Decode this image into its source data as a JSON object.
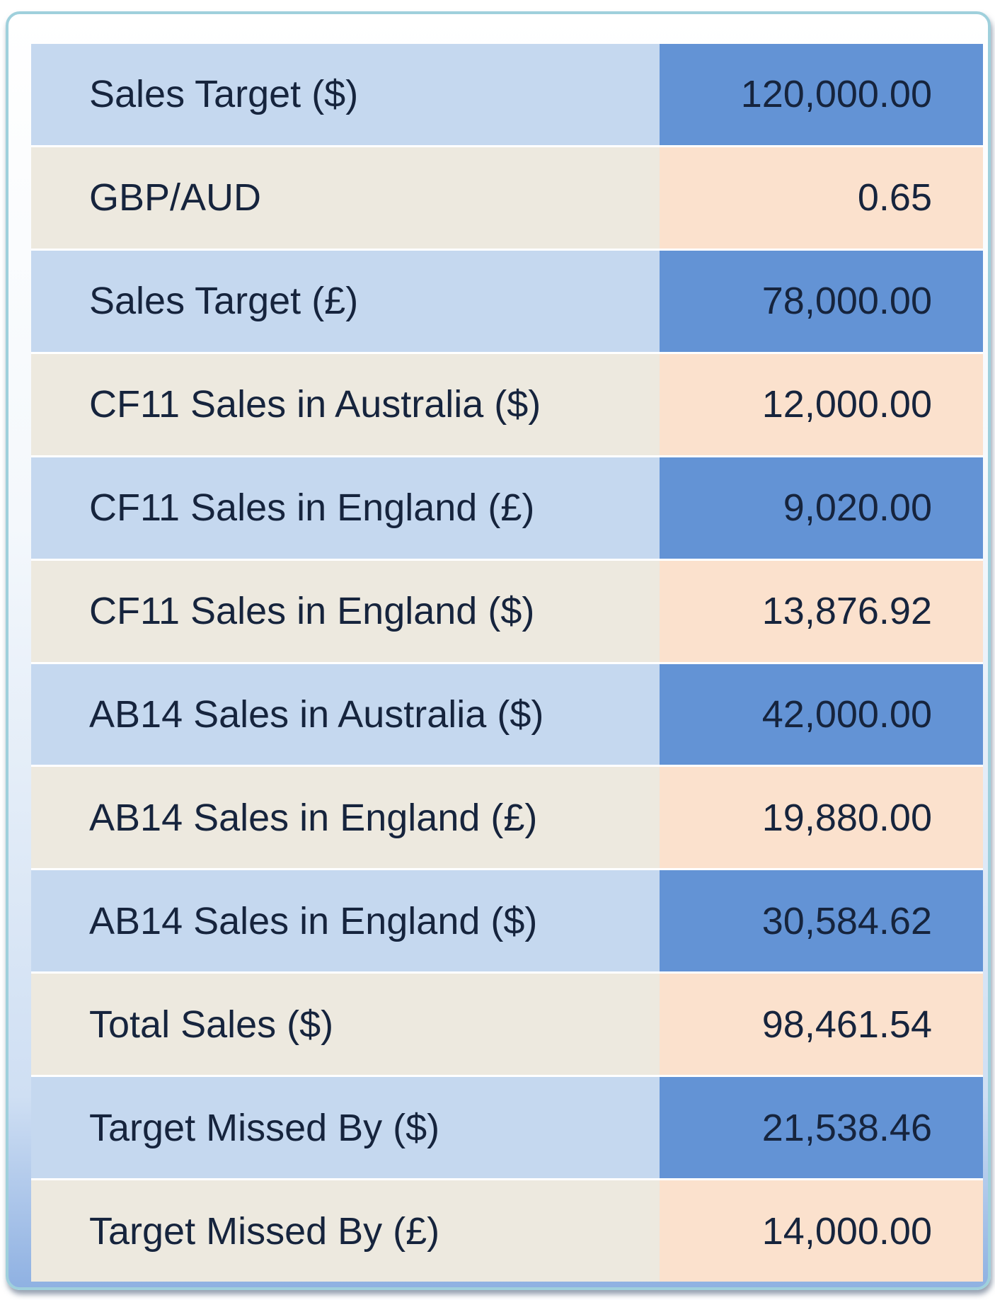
{
  "rows": [
    {
      "label": "Sales Target ($)",
      "value": "120,000.00"
    },
    {
      "label": "GBP/AUD",
      "value": "0.65"
    },
    {
      "label": "Sales Target (£)",
      "value": "78,000.00"
    },
    {
      "label": "CF11 Sales in Australia ($)",
      "value": "12,000.00"
    },
    {
      "label": "CF11 Sales in England (£)",
      "value": "9,020.00"
    },
    {
      "label": "CF11 Sales in England ($)",
      "value": "13,876.92"
    },
    {
      "label": "AB14 Sales in Australia ($)",
      "value": "42,000.00"
    },
    {
      "label": "AB14 Sales in England (£)",
      "value": "19,880.00"
    },
    {
      "label": "AB14 Sales in England ($)",
      "value": "30,584.62"
    },
    {
      "label": "Total Sales ($)",
      "value": "98,461.54"
    },
    {
      "label": "Target Missed By ($)",
      "value": "21,538.46"
    },
    {
      "label": "Target Missed By (£)",
      "value": "14,000.00"
    }
  ],
  "colors": {
    "label_blue": "#c5d8ef",
    "value_blue": "#6393d5",
    "label_beige": "#ede9df",
    "value_peach": "#fbe1cd",
    "text": "#16243d",
    "frame_border": "#9fd0dc"
  }
}
